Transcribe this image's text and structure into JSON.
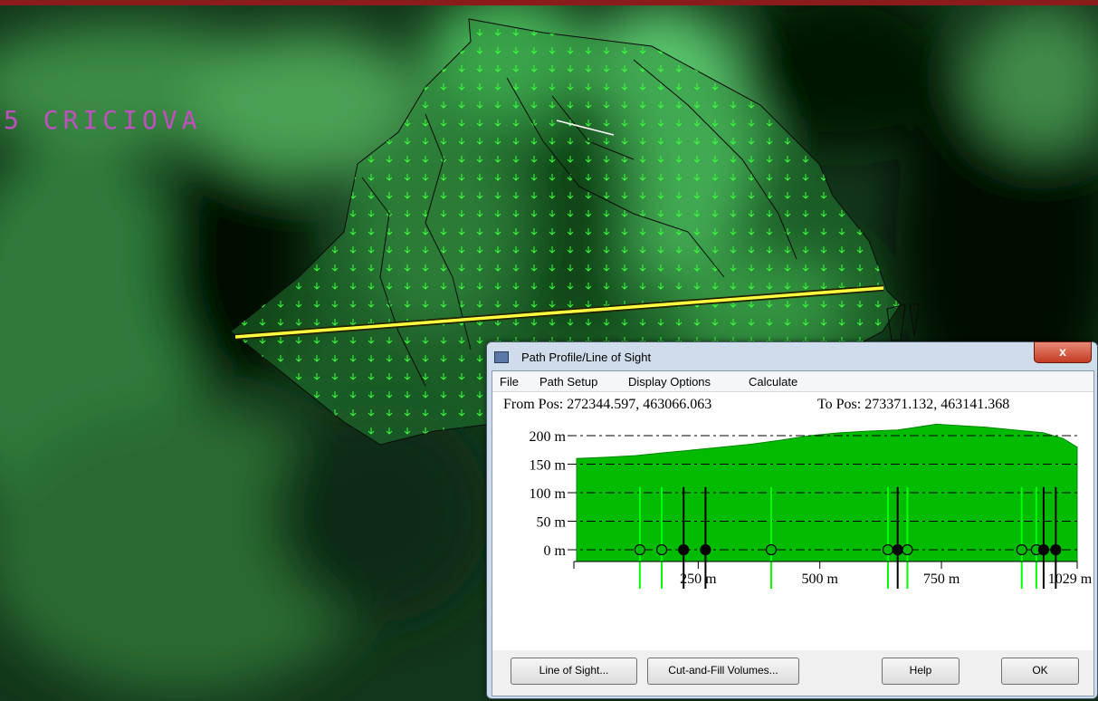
{
  "map": {
    "label": "5 CRICIOVA"
  },
  "dialog": {
    "title": "Path Profile/Line of Sight",
    "close_glyph": "x",
    "menu": [
      "File",
      "Path Setup",
      "Display Options",
      "Calculate"
    ],
    "from_pos": "From Pos: 272344.597, 463066.063",
    "to_pos": "To Pos: 273371.132, 463141.368",
    "buttons": {
      "line_of_sight": "Line of Sight...",
      "cut_fill": "Cut-and-Fill Volumes...",
      "help": "Help",
      "ok": "OK"
    }
  },
  "chart_data": {
    "type": "area",
    "title": "",
    "xlabel": "",
    "ylabel": "",
    "xlim": [
      0,
      1029
    ],
    "ylim": [
      0,
      200
    ],
    "y_tick_labels": [
      "200 m",
      "150 m",
      "100 m",
      "50 m",
      "0 m"
    ],
    "y_ticks": [
      200,
      150,
      100,
      50,
      0
    ],
    "x_tick_labels": [
      "250 m",
      "500 m",
      "750 m",
      "1029 m"
    ],
    "x_ticks": [
      250,
      500,
      750,
      1029
    ],
    "grid": true,
    "fill_color": "#00bb00",
    "profile": {
      "x": [
        0,
        60,
        120,
        180,
        240,
        300,
        360,
        420,
        480,
        540,
        600,
        660,
        700,
        740,
        780,
        840,
        900,
        960,
        1000,
        1029
      ],
      "y": [
        160,
        162,
        165,
        170,
        175,
        180,
        185,
        192,
        200,
        205,
        208,
        210,
        215,
        220,
        218,
        215,
        210,
        205,
        195,
        180
      ]
    },
    "markers": [
      {
        "x": 130,
        "style": "open",
        "color": "#00ff00"
      },
      {
        "x": 175,
        "style": "open",
        "color": "#00ff00"
      },
      {
        "x": 220,
        "style": "filled",
        "color": "#000000"
      },
      {
        "x": 265,
        "style": "filled",
        "color": "#000000"
      },
      {
        "x": 400,
        "style": "open",
        "color": "#00ff00"
      },
      {
        "x": 640,
        "style": "open",
        "color": "#00ff00"
      },
      {
        "x": 660,
        "style": "filled",
        "color": "#000000"
      },
      {
        "x": 680,
        "style": "open",
        "color": "#00ff00"
      },
      {
        "x": 915,
        "style": "open",
        "color": "#00ff00"
      },
      {
        "x": 945,
        "style": "open",
        "color": "#00ff00"
      },
      {
        "x": 960,
        "style": "filled",
        "color": "#000000"
      },
      {
        "x": 985,
        "style": "filled",
        "color": "#000000"
      }
    ]
  }
}
